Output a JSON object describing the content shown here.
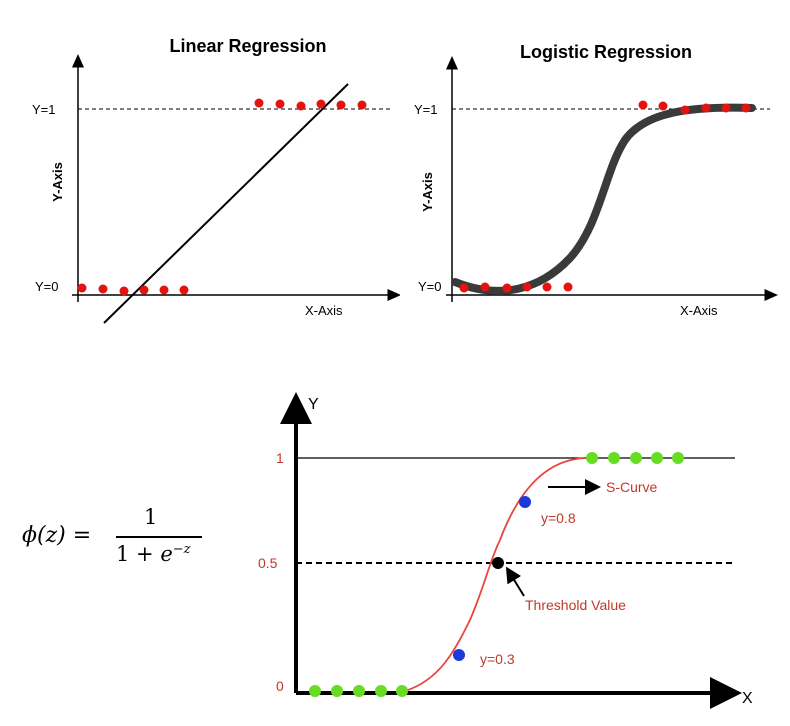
{
  "linear": {
    "title": "Linear Regression",
    "y_axis_label": "Y-Axis",
    "x_axis_label": "X-Axis",
    "y1_label": "Y=1",
    "y0_label": "Y=0",
    "point_color": "#e3130f"
  },
  "logistic": {
    "title": "Logistic Regression",
    "y_axis_label": "Y-Axis",
    "x_axis_label": "X-Axis",
    "y1_label": "Y=1",
    "y0_label": "Y=0",
    "point_color": "#e3130f",
    "curve_color": "#3a3a3a"
  },
  "formula": {
    "lhs": "ϕ(z) =",
    "numerator": "1",
    "denominator_base": "1 + ",
    "denominator_e": "e",
    "denominator_exp": "−z"
  },
  "scurve": {
    "y_axis_letter": "Y",
    "x_axis_letter": "X",
    "tick_1": "1",
    "tick_05": "0.5",
    "tick_0": "0",
    "s_curve_label": "S-Curve",
    "threshold_label": "Threshold Value",
    "y08_label": "y=0.8",
    "y03_label": "y=0.3",
    "curve_color": "#e8453c",
    "green_color": "#66dd22",
    "blue_color": "#1a3adb"
  }
}
